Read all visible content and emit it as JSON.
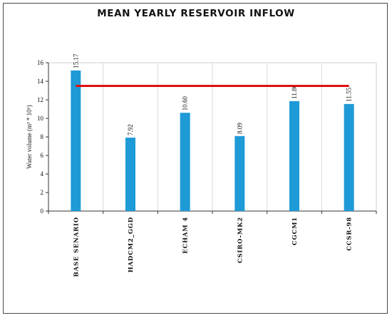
{
  "chart_data": {
    "type": "bar",
    "title": "MEAN YEARLY RESERVOIR INFLOW",
    "ylabel": "Water volume (m³ * 10⁶)",
    "xlabel": "",
    "categories": [
      "BASE SENARIO",
      "HADCM2_GGD",
      "ECHAM 4",
      "CSIRO-MK2",
      "CGCM1",
      "CCSR-98"
    ],
    "values": [
      15.17,
      7.92,
      10.6,
      8.09,
      11.86,
      11.55
    ],
    "data_labels": [
      "15.17",
      "7.92",
      "10.60",
      "8.09",
      "11.86",
      "11.55"
    ],
    "ylim": [
      0,
      16
    ],
    "yticks": [
      0,
      2,
      4,
      6,
      8,
      10,
      12,
      14,
      16
    ],
    "reference_line": {
      "y": 13.5,
      "x_from_category": 0,
      "x_to_category": 5
    },
    "grid": "vertical category separators",
    "colors": {
      "bar": "#1e9ad6",
      "reference_line": "#e01010",
      "grid": "#d9d9d9",
      "axis": "#333333"
    }
  }
}
